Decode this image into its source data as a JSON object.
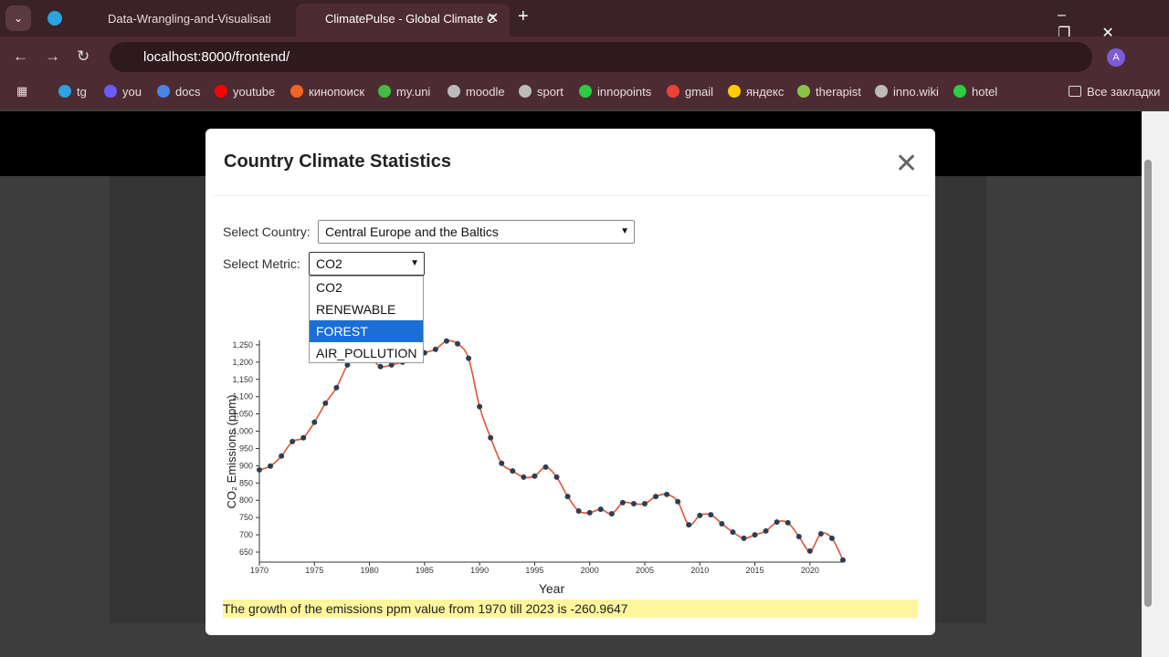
{
  "browser": {
    "tabs": [
      {
        "title": "Data-Wrangling-and-Visualisati"
      },
      {
        "title": "ClimatePulse - Global Climate C"
      }
    ],
    "url": "localhost:8000/frontend/",
    "bookmarks": [
      "tg",
      "you",
      "docs",
      "youtube",
      "кинопоиск",
      "my.uni",
      "moodle",
      "sport",
      "innopoints",
      "gmail",
      "яндекс",
      "therapist",
      "inno.wiki",
      "hotel"
    ],
    "all_bookmarks": "Все закладки",
    "profile": "A"
  },
  "modal": {
    "title": "Country Climate Statistics",
    "country_label": "Select Country:",
    "country": "Central Europe and the Baltics",
    "metric_label": "Select Metric:",
    "metric": "CO2",
    "metric_options": [
      "CO2",
      "RENEWABLE",
      "FOREST",
      "AIR_POLLUTION"
    ],
    "summary": "The growth of the emissions ppm value from 1970 till 2023 is -260.9647"
  },
  "chart_data": {
    "type": "line",
    "x_label": "Year",
    "y_label": "CO₂ Emissions (ppm)",
    "x": [
      1970,
      1971,
      1972,
      1973,
      1974,
      1975,
      1976,
      1977,
      1978,
      1979,
      1980,
      1981,
      1982,
      1983,
      1984,
      1985,
      1986,
      1987,
      1988,
      1989,
      1990,
      1991,
      1992,
      1993,
      1994,
      1995,
      1996,
      1997,
      1998,
      1999,
      2000,
      2001,
      2002,
      2003,
      2004,
      2005,
      2006,
      2007,
      2008,
      2009,
      2010,
      2011,
      2012,
      2013,
      2014,
      2015,
      2016,
      2017,
      2018,
      2019,
      2020,
      2021,
      2022,
      2023
    ],
    "series": [
      {
        "name": "CO2",
        "color": "#e0533a",
        "marker_color": "#2c3e50",
        "values": [
          888,
          899,
          928,
          970,
          981,
          1026,
          1081,
          1126,
          1192,
          1228,
          1215,
          1187,
          1192,
          1200,
          1212,
          1227,
          1237,
          1261,
          1253,
          1211,
          1071,
          981,
          907,
          885,
          867,
          870,
          896,
          867,
          811,
          769,
          764,
          774,
          761,
          793,
          790,
          790,
          811,
          817,
          796,
          729,
          756,
          758,
          732,
          708,
          690,
          700,
          711,
          737,
          735,
          695,
          653,
          703,
          690,
          627
        ]
      }
    ],
    "xlim": [
      1970,
      2023
    ],
    "xticks": [
      1970,
      1975,
      1980,
      1985,
      1990,
      1995,
      2000,
      2005,
      2010,
      2015,
      2020
    ],
    "ylim": [
      621,
      1263
    ],
    "yticks": [
      650,
      700,
      750,
      800,
      850,
      900,
      950,
      {
        "value": 1000,
        "label": "1,000"
      },
      {
        "value": 1050,
        "label": "1,050"
      },
      {
        "value": 1100,
        "label": "1,100"
      },
      {
        "value": 1150,
        "label": "1,150"
      },
      {
        "value": 1200,
        "label": "1,200"
      },
      {
        "value": 1250,
        "label": "1,250"
      }
    ]
  }
}
